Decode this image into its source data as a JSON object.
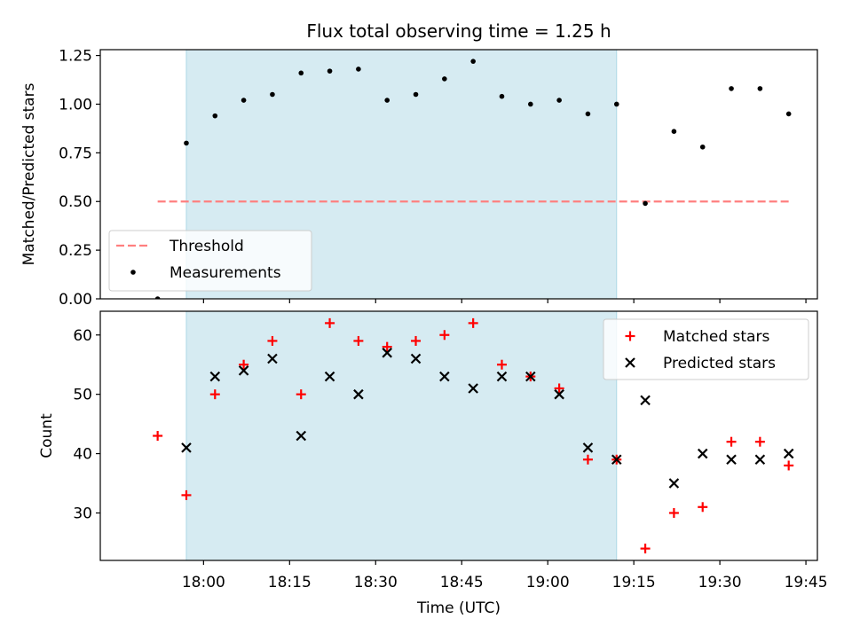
{
  "figure": {
    "title": "Flux total observing time = 1.25 h",
    "xlabel": "Time (UTC)"
  },
  "chart_data": [
    {
      "type": "scatter",
      "panel": "top",
      "ylabel": "Matched/Predicted stars",
      "xlim": [
        "17:42",
        "19:47"
      ],
      "ylim": [
        0,
        1.28
      ],
      "y_ticks": [
        "0.00",
        "0.25",
        "0.50",
        "0.75",
        "1.00",
        "1.25"
      ],
      "x_ticks": [
        "18:00",
        "18:15",
        "18:30",
        "18:45",
        "19:00",
        "19:15",
        "19:30",
        "19:45"
      ],
      "shaded_interval": [
        "17:57",
        "19:12"
      ],
      "shade_color": "#add8e6",
      "grid": false,
      "legend_position": "lower-left",
      "series": [
        {
          "name": "Threshold",
          "style": "dashed-line",
          "color": "#ff7f7f",
          "x": [
            "17:52",
            "19:42"
          ],
          "y": [
            0.5,
            0.5
          ]
        },
        {
          "name": "Measurements",
          "style": "dot",
          "color": "#000000",
          "x": [
            "17:52",
            "17:57",
            "18:02",
            "18:07",
            "18:12",
            "18:17",
            "18:22",
            "18:27",
            "18:32",
            "18:37",
            "18:42",
            "18:47",
            "18:52",
            "18:57",
            "19:02",
            "19:07",
            "19:12",
            "19:17",
            "19:22",
            "19:27",
            "19:32",
            "19:37",
            "19:42"
          ],
          "y": [
            0.0,
            0.8,
            0.94,
            1.02,
            1.05,
            1.16,
            1.17,
            1.18,
            1.02,
            1.05,
            1.13,
            1.22,
            1.04,
            1.0,
            1.02,
            0.95,
            1.0,
            0.49,
            0.86,
            0.78,
            1.08,
            1.08,
            0.95
          ]
        }
      ]
    },
    {
      "type": "scatter",
      "panel": "bottom",
      "ylabel": "Count",
      "xlim": [
        "17:42",
        "19:47"
      ],
      "ylim": [
        22,
        64
      ],
      "y_ticks": [
        "30",
        "40",
        "50",
        "60"
      ],
      "x_ticks": [
        "18:00",
        "18:15",
        "18:30",
        "18:45",
        "19:00",
        "19:15",
        "19:30",
        "19:45"
      ],
      "shaded_interval": [
        "17:57",
        "19:12"
      ],
      "shade_color": "#add8e6",
      "grid": false,
      "legend_position": "upper-right",
      "series": [
        {
          "name": "Matched stars",
          "marker": "plus",
          "color": "#ff0000",
          "x": [
            "17:52",
            "17:57",
            "18:02",
            "18:07",
            "18:12",
            "18:17",
            "18:22",
            "18:27",
            "18:32",
            "18:37",
            "18:42",
            "18:47",
            "18:52",
            "18:57",
            "19:02",
            "19:07",
            "19:12",
            "19:17",
            "19:22",
            "19:27",
            "19:32",
            "19:37",
            "19:42"
          ],
          "y": [
            43,
            33,
            50,
            55,
            59,
            50,
            62,
            59,
            58,
            59,
            60,
            62,
            55,
            53,
            51,
            39,
            39,
            24,
            30,
            31,
            42,
            42,
            38
          ]
        },
        {
          "name": "Predicted stars",
          "marker": "x",
          "color": "#000000",
          "x": [
            "17:57",
            "18:02",
            "18:07",
            "18:12",
            "18:17",
            "18:22",
            "18:27",
            "18:32",
            "18:37",
            "18:42",
            "18:47",
            "18:52",
            "18:57",
            "19:02",
            "19:07",
            "19:12",
            "19:17",
            "19:22",
            "19:27",
            "19:32",
            "19:37",
            "19:42"
          ],
          "y": [
            41,
            53,
            54,
            56,
            43,
            53,
            50,
            57,
            56,
            53,
            51,
            53,
            53,
            50,
            41,
            39,
            49,
            35,
            40,
            39,
            39,
            40
          ]
        }
      ]
    }
  ]
}
